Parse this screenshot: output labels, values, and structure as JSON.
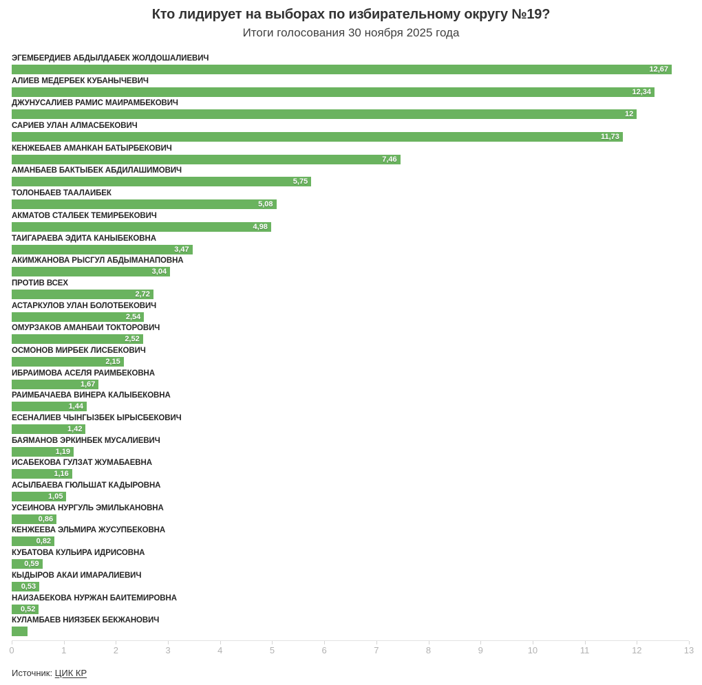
{
  "header": {
    "title": "Кто лидирует на выборах по избирательному округу №19?",
    "subtitle": "Итоги голосования 30 ноября 2025 года"
  },
  "chart_data": {
    "type": "bar",
    "orientation": "horizontal",
    "title": "Кто лидирует на выборах по избирательному округу №19?",
    "subtitle": "Итоги голосования 30 ноября 2025 года",
    "xlim": [
      0,
      13
    ],
    "x_ticks": [
      0,
      1,
      2,
      3,
      4,
      5,
      6,
      7,
      8,
      9,
      10,
      11,
      12,
      13
    ],
    "grid": false,
    "bar_color": "#6ab35f",
    "categories": [
      "ЭГЕМБЕРДИЕВ АБДЫЛДАБЕК ЖОЛДОШАЛИЕВИЧ",
      "АЛИЕВ МЕДЕРБЕК КУБАНЫЧЕВИЧ",
      "ДЖУНУСАЛИЕВ РАМИС МАЙРАМБЕКОВИЧ",
      "САРИЕВ УЛАН АЛМАСБЕКОВИЧ",
      "КЕНЖЕБАЕВ АМАНКАН БАТЫРБЕКОВИЧ",
      "АМАНБАЕВ БАКТЫБЕК АБДИЛАШИМОВИЧ",
      "ТОЛОНБАЕВ ТААЛАЙБЕК",
      "АКМАТОВ СТАЛБЕК ТЕМИРБЕКОВИЧ",
      "ТАЙГАРАЕВА ЭДИТА КАНЫБЕКОВНА",
      "АКИМЖАНОВА РЫСГУЛ АБДЫМАНАПОВНА",
      "ПРОТИВ ВСЕХ",
      "АСТАРКУЛОВ УЛАН БОЛОТБЕКОВИЧ",
      "ОМУРЗАКОВ АМАНБАЙ ТОКТОРОВИЧ",
      "ОСМОНОВ МИРБЕК ЛИСБЕКОВИЧ",
      "ИБРАИМОВА АСЕЛЯ РАИМБЕКОВНА",
      "РАИМБАЧАЕВА ВИНЕРА КАЛЫБЕКОВНА",
      "ЕСЕНАЛИЕВ ЧЫНГЫЗБЕК ЫРЫСБЕКОВИЧ",
      "БАЯМАНОВ ЭРКИНБЕК МУСАЛИЕВИЧ",
      "ИСАБЕКОВА ГУЛЗАТ ЖУМАБАЕВНА",
      "АСЫЛБАЕВА ГЮЛЬШАТ КАДЫРОВНА",
      "УСЕИНОВА НУРГУЛЬ ЭМИЛЬКАНОВНА",
      "КЕНЖЕЕВА ЭЛЬМИРА ЖУСУПБЕКОВНА",
      "КУБАТОВА КУЛЬИРА ИДРИСОВНА",
      "КЫДЫРОВ АКАЙ ИМАРАЛИЕВИЧ",
      "НАЙЗАБЕКОВА НУРЖАН БАЙТЕМИРОВНА",
      "КУЛАМБАЕВ НИЯЗБЕК БЕКЖАНОВИЧ"
    ],
    "values": [
      12.67,
      12.34,
      12,
      11.73,
      7.46,
      5.75,
      5.08,
      4.98,
      3.47,
      3.04,
      2.72,
      2.54,
      2.52,
      2.15,
      1.67,
      1.44,
      1.42,
      1.19,
      1.16,
      1.05,
      0.86,
      0.82,
      0.59,
      0.53,
      0.52,
      0.3
    ],
    "value_labels": [
      "12,67",
      "12,34",
      "12",
      "11,73",
      "7,46",
      "5,75",
      "5,08",
      "4,98",
      "3,47",
      "3,04",
      "2,72",
      "2,54",
      "2,52",
      "2,15",
      "1,67",
      "1,44",
      "1,42",
      "1,19",
      "1,16",
      "1,05",
      "0,86",
      "0,82",
      "0,59",
      "0,53",
      "0,52",
      ""
    ]
  },
  "footer": {
    "source_label": "Источник:",
    "source_link": "ЦИК КР"
  }
}
